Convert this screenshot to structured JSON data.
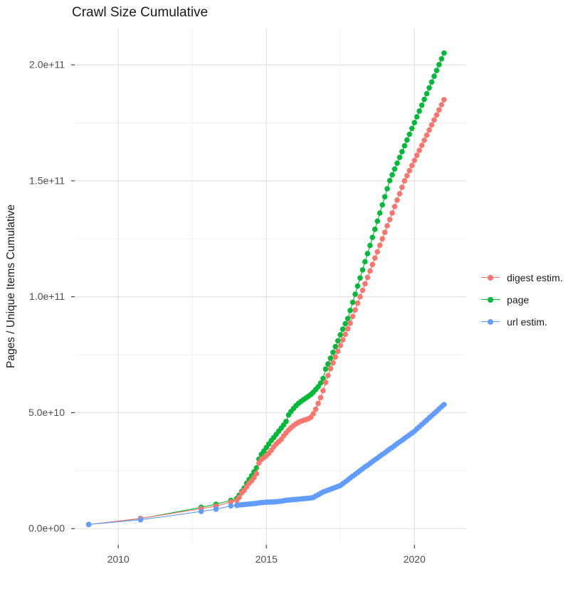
{
  "title": "Crawl Size Cumulative",
  "style": {
    "background": "#ffffff",
    "grid_major": "#e3e3e3",
    "grid_minor": "#f0f0f0",
    "axis_text": "#4d4d4d",
    "tick_color": "#333333",
    "text_color": "#1a1a1a"
  },
  "chart_data": {
    "type": "scatter",
    "title": "Crawl Size Cumulative",
    "xlabel": "",
    "ylabel": "Pages / Unique Items Cumulative",
    "legend_position": "right",
    "grid": true,
    "value_unit": "values are in units of 1e10 pages / unique items",
    "axes": {
      "x_domain": [
        2008.53,
        2021.75
      ],
      "y_domain_e10": [
        -0.7,
        21.57
      ],
      "x_ticks": [
        {
          "v": 2010,
          "label": "2010"
        },
        {
          "v": 2015,
          "label": "2015"
        },
        {
          "v": 2020,
          "label": "2020"
        }
      ],
      "y_ticks": [
        {
          "v": 0,
          "label": "0.0e+00"
        },
        {
          "v": 5,
          "label": "5.0e+10"
        },
        {
          "v": 10,
          "label": "1.0e+11"
        },
        {
          "v": 15,
          "label": "1.5e+11"
        },
        {
          "v": 20,
          "label": "2.0e+11"
        }
      ],
      "x_minor": [
        2012.5,
        2017.5
      ],
      "y_minor": [
        2.5,
        7.5,
        12.5,
        17.5
      ]
    },
    "draw_order": [
      1,
      0,
      2
    ],
    "x_years": [
      2009.0,
      2010.75,
      2012.8,
      2013.3,
      2013.8,
      2014.0,
      2014.083,
      2014.167,
      2014.25,
      2014.333,
      2014.417,
      2014.5,
      2014.583,
      2014.667,
      2014.75,
      2014.833,
      2014.917,
      2015.0,
      2015.083,
      2015.167,
      2015.25,
      2015.333,
      2015.417,
      2015.5,
      2015.583,
      2015.667,
      2015.75,
      2015.833,
      2015.917,
      2016.0,
      2016.083,
      2016.167,
      2016.25,
      2016.333,
      2016.417,
      2016.5,
      2016.583,
      2016.667,
      2016.75,
      2016.833,
      2016.917,
      2017.0,
      2017.083,
      2017.167,
      2017.25,
      2017.333,
      2017.417,
      2017.5,
      2017.583,
      2017.667,
      2017.75,
      2017.833,
      2017.917,
      2018.0,
      2018.083,
      2018.167,
      2018.25,
      2018.333,
      2018.417,
      2018.5,
      2018.583,
      2018.667,
      2018.75,
      2018.833,
      2018.917,
      2019.0,
      2019.083,
      2019.167,
      2019.25,
      2019.333,
      2019.417,
      2019.5,
      2019.583,
      2019.667,
      2019.75,
      2019.833,
      2019.917,
      2020.0,
      2020.083,
      2020.167,
      2020.25,
      2020.333,
      2020.417,
      2020.5,
      2020.583,
      2020.667,
      2020.75,
      2020.833,
      2020.917,
      2021.0
    ],
    "series": [
      {
        "name": "digest estim.",
        "color": "#F8766D",
        "values_e10": [
          0.18,
          0.44,
          0.86,
          0.97,
          1.15,
          1.22,
          1.35,
          1.54,
          1.65,
          1.8,
          1.95,
          2.06,
          2.2,
          2.37,
          2.83,
          2.98,
          3.06,
          3.15,
          3.25,
          3.38,
          3.53,
          3.65,
          3.75,
          3.85,
          4.0,
          4.13,
          4.25,
          4.35,
          4.44,
          4.52,
          4.58,
          4.63,
          4.67,
          4.7,
          4.74,
          4.8,
          4.95,
          5.15,
          5.4,
          5.65,
          5.95,
          6.3,
          6.6,
          6.9,
          7.15,
          7.4,
          7.65,
          7.9,
          8.14,
          8.38,
          8.62,
          8.86,
          9.15,
          9.43,
          9.72,
          10.0,
          10.28,
          10.56,
          10.83,
          11.11,
          11.39,
          11.67,
          11.94,
          12.22,
          12.5,
          12.78,
          13.06,
          13.33,
          13.61,
          13.89,
          14.17,
          14.44,
          14.72,
          15.0,
          15.22,
          15.44,
          15.66,
          15.88,
          16.1,
          16.31,
          16.53,
          16.75,
          16.97,
          17.19,
          17.41,
          17.63,
          17.84,
          18.06,
          18.28,
          18.5
        ]
      },
      {
        "name": "page",
        "color": "#00BA38",
        "values_e10": [
          0.18,
          0.43,
          0.92,
          1.05,
          1.22,
          1.3,
          1.44,
          1.6,
          1.75,
          1.95,
          2.12,
          2.28,
          2.45,
          2.62,
          3.0,
          3.2,
          3.35,
          3.5,
          3.65,
          3.8,
          3.93,
          4.06,
          4.2,
          4.33,
          4.47,
          4.62,
          4.9,
          5.05,
          5.18,
          5.3,
          5.4,
          5.48,
          5.56,
          5.63,
          5.7,
          5.78,
          5.88,
          6.0,
          6.12,
          6.28,
          6.48,
          6.88,
          7.1,
          7.35,
          7.6,
          7.85,
          8.1,
          8.36,
          8.6,
          8.84,
          9.06,
          9.41,
          9.76,
          10.11,
          10.46,
          10.81,
          11.16,
          11.51,
          11.86,
          12.21,
          12.56,
          12.91,
          13.26,
          13.61,
          13.96,
          14.31,
          14.66,
          15.01,
          15.26,
          15.51,
          15.76,
          16.01,
          16.26,
          16.51,
          16.76,
          17.01,
          17.26,
          17.51,
          17.76,
          18.01,
          18.26,
          18.51,
          18.76,
          19.01,
          19.26,
          19.51,
          19.76,
          20.01,
          20.26,
          20.51
        ]
      },
      {
        "name": "url estim.",
        "color": "#619CFF",
        "values_e10": [
          0.18,
          0.38,
          0.74,
          0.84,
          0.98,
          1.0,
          1.02,
          1.03,
          1.04,
          1.05,
          1.06,
          1.07,
          1.08,
          1.09,
          1.11,
          1.12,
          1.13,
          1.14,
          1.14,
          1.15,
          1.15,
          1.16,
          1.17,
          1.18,
          1.2,
          1.22,
          1.23,
          1.24,
          1.25,
          1.26,
          1.27,
          1.28,
          1.29,
          1.3,
          1.31,
          1.32,
          1.34,
          1.4,
          1.46,
          1.52,
          1.58,
          1.62,
          1.66,
          1.7,
          1.74,
          1.78,
          1.82,
          1.86,
          1.94,
          2.02,
          2.1,
          2.18,
          2.26,
          2.34,
          2.42,
          2.5,
          2.58,
          2.66,
          2.73,
          2.81,
          2.89,
          2.97,
          3.04,
          3.12,
          3.2,
          3.27,
          3.35,
          3.43,
          3.5,
          3.58,
          3.66,
          3.74,
          3.81,
          3.89,
          3.97,
          4.04,
          4.12,
          4.2,
          4.3,
          4.39,
          4.49,
          4.58,
          4.68,
          4.78,
          4.87,
          4.97,
          5.06,
          5.16,
          5.26,
          5.35
        ]
      }
    ]
  }
}
